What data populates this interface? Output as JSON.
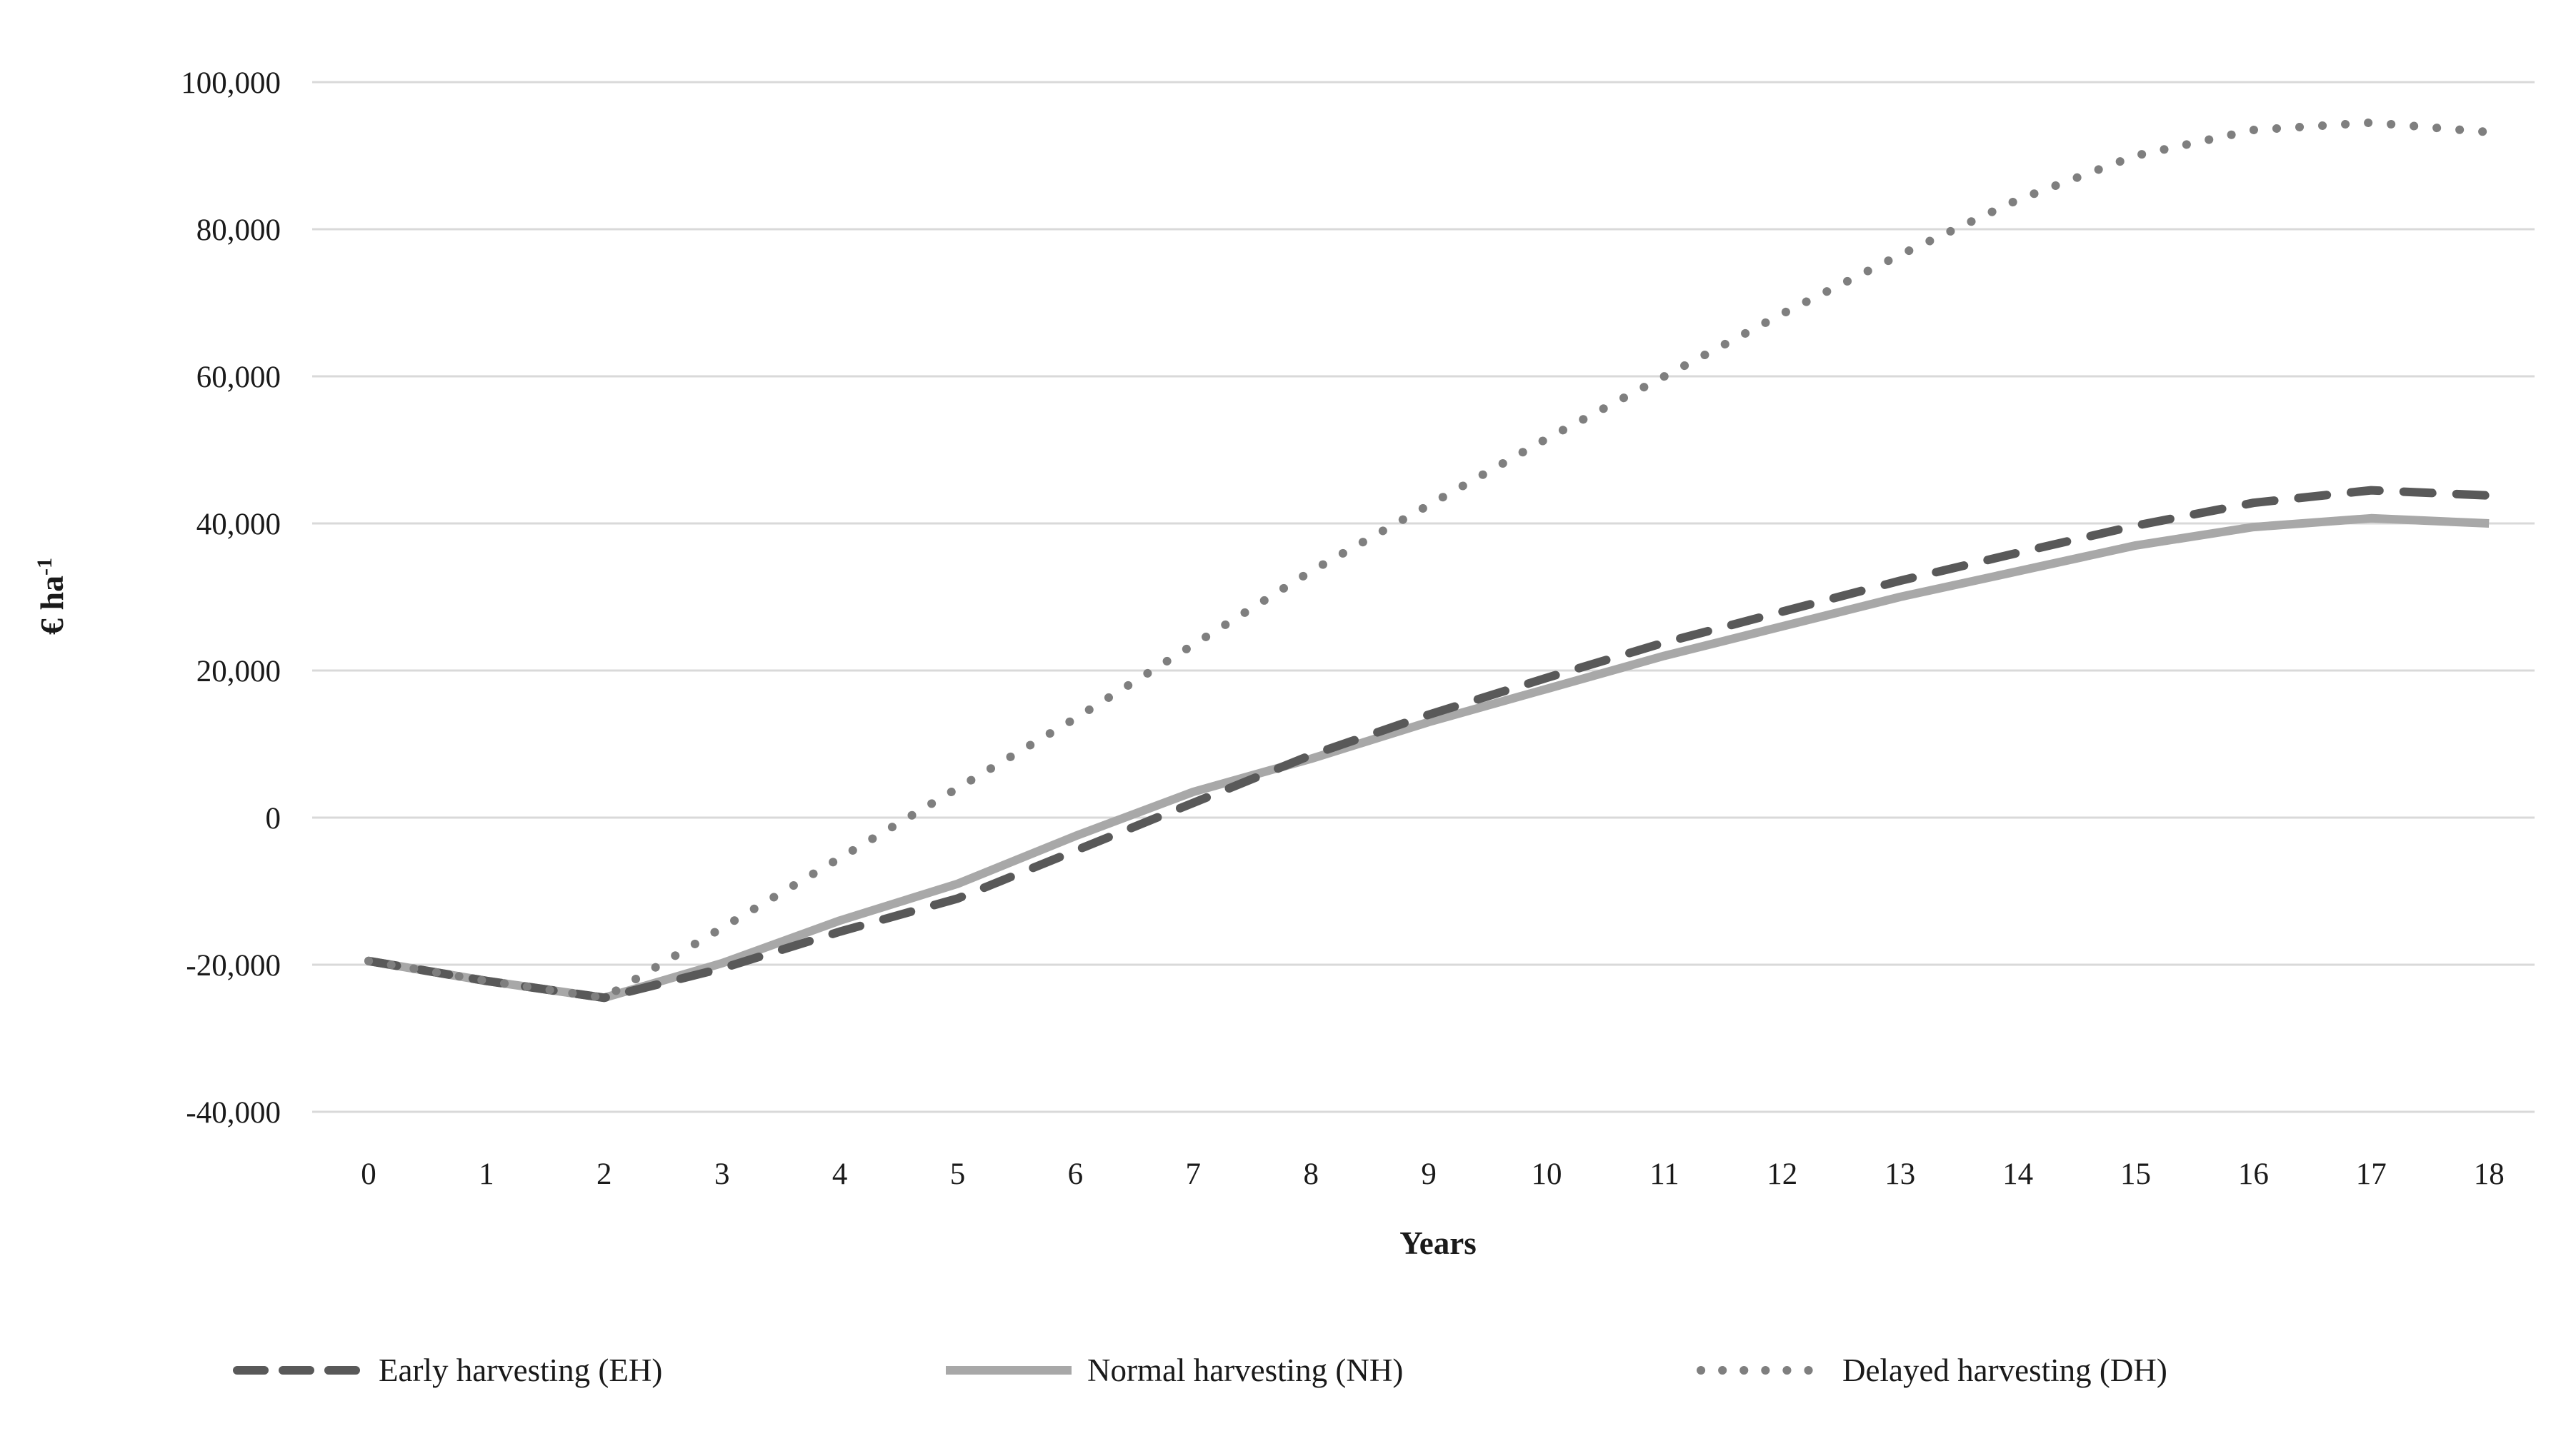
{
  "chart_data": {
    "type": "line",
    "title": "",
    "xlabel": "Years",
    "ylabel": "€ ha⁻¹",
    "ylabel_base": "€ ha",
    "ylabel_superscript": "-1",
    "xlim": [
      0,
      18
    ],
    "ylim": [
      -40000,
      100000
    ],
    "grid": "horizontal-only",
    "grid_color": "#d9d9d9",
    "text_color": "#1a1a1a",
    "background": "#ffffff",
    "legend_position": "bottom",
    "x_tick_labels": [
      "0",
      "1",
      "2",
      "3",
      "4",
      "5",
      "6",
      "7",
      "8",
      "9",
      "10",
      "11",
      "12",
      "13",
      "14",
      "15",
      "16",
      "17",
      "18"
    ],
    "y_ticks": [
      {
        "value": 100000,
        "label": "100,000"
      },
      {
        "value": 80000,
        "label": "80,000"
      },
      {
        "value": 60000,
        "label": "60,000"
      },
      {
        "value": 40000,
        "label": "40,000"
      },
      {
        "value": 20000,
        "label": "20,000"
      },
      {
        "value": 0,
        "label": "0"
      },
      {
        "value": -20000,
        "label": "-20,000"
      },
      {
        "value": -40000,
        "label": "-40,000"
      }
    ],
    "categories": [
      0,
      1,
      2,
      3,
      4,
      5,
      6,
      7,
      8,
      9,
      10,
      11,
      12,
      13,
      14,
      15,
      16,
      17,
      18
    ],
    "series": [
      {
        "name": "Early harvesting (EH)",
        "abbr": "EH",
        "line_style": "dashed",
        "color": "#595959",
        "values": [
          -19500,
          -22200,
          -24500,
          -20500,
          -15500,
          -11000,
          -4500,
          2000,
          8500,
          14000,
          19000,
          23800,
          28000,
          32200,
          36000,
          39700,
          42800,
          44500,
          43800
        ]
      },
      {
        "name": "Normal harvesting (NH)",
        "abbr": "NH",
        "line_style": "solid",
        "color": "#a8a8a8",
        "values": [
          -19500,
          -22200,
          -24500,
          -19800,
          -14000,
          -9000,
          -2500,
          3500,
          8000,
          13000,
          17500,
          22000,
          26000,
          30000,
          33500,
          37000,
          39500,
          40700,
          40000
        ]
      },
      {
        "name": "Delayed harvesting (DH)",
        "abbr": "DH",
        "line_style": "dotted",
        "color": "#7f7f7f",
        "values": [
          -19500,
          -22200,
          -24500,
          -15000,
          -5500,
          4000,
          13500,
          23500,
          33500,
          42500,
          51500,
          60000,
          68500,
          76500,
          84000,
          90000,
          93500,
          94500,
          93200
        ]
      }
    ]
  }
}
